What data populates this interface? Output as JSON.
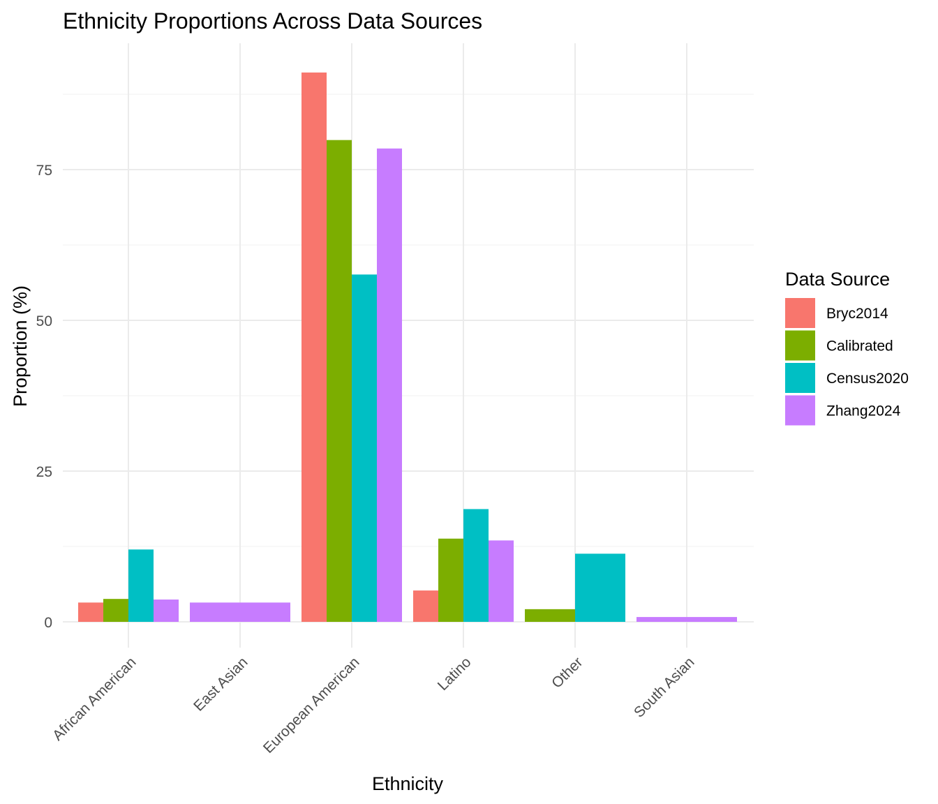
{
  "chart_data": {
    "type": "bar",
    "title": "Ethnicity Proportions Across Data Sources",
    "xlabel": "Ethnicity",
    "ylabel": "Proportion (%)",
    "ylim": [
      -7.5,
      99
    ],
    "y_ticks": [
      0,
      25,
      50,
      75
    ],
    "grid": true,
    "legend_title": "Data Source",
    "legend_position": "right",
    "categories": [
      "African American",
      "East Asian",
      "European American",
      "Latino",
      "Other",
      "South Asian"
    ],
    "series": [
      {
        "name": "Bryc2014",
        "color": "#F8766D",
        "values": [
          3.2,
          null,
          91.1,
          5.2,
          null,
          null
        ]
      },
      {
        "name": "Calibrated",
        "color": "#7CAE00",
        "values": [
          3.8,
          null,
          79.9,
          13.8,
          2.1,
          null
        ]
      },
      {
        "name": "Census2020",
        "color": "#00BFC4",
        "values": [
          12.0,
          null,
          57.6,
          18.7,
          11.3,
          null
        ]
      },
      {
        "name": "Zhang2024",
        "color": "#C77CFF",
        "values": [
          3.7,
          3.2,
          78.5,
          13.5,
          null,
          0.8
        ]
      }
    ]
  }
}
